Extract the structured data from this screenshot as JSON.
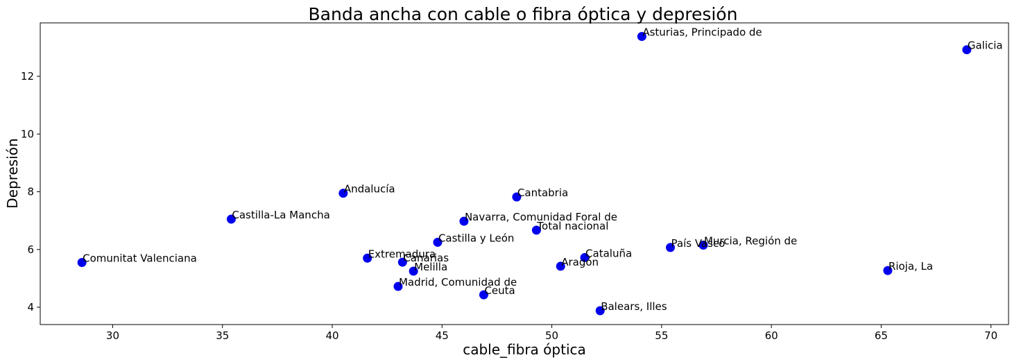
{
  "chart_data": {
    "type": "scatter",
    "title": "Banda ancha con cable o fibra óptica y depresión",
    "xlabel": "cable_fibra óptica",
    "ylabel": "Depresión",
    "xlim": [
      26.7,
      70.8
    ],
    "ylim": [
      3.4,
      13.85
    ],
    "xticks": [
      30,
      35,
      40,
      45,
      50,
      55,
      60,
      65,
      70
    ],
    "yticks": [
      4,
      6,
      8,
      10,
      12
    ],
    "grid": false,
    "marker_color": "#0000ee",
    "points": [
      {
        "label": "Comunitat Valenciana",
        "x": 28.6,
        "y": 5.55
      },
      {
        "label": "Castilla-La Mancha",
        "x": 35.4,
        "y": 7.05
      },
      {
        "label": "Andalucía",
        "x": 40.5,
        "y": 7.95
      },
      {
        "label": "Extremadura",
        "x": 41.6,
        "y": 5.7
      },
      {
        "label": "Madrid, Comunidad de",
        "x": 43.0,
        "y": 4.72
      },
      {
        "label": "Canarias",
        "x": 43.2,
        "y": 5.56
      },
      {
        "label": "Melilla",
        "x": 43.7,
        "y": 5.25
      },
      {
        "label": "Castilla y León",
        "x": 44.8,
        "y": 6.25
      },
      {
        "label": "Navarra, Comunidad Foral de",
        "x": 46.0,
        "y": 6.98
      },
      {
        "label": "Ceuta",
        "x": 46.9,
        "y": 4.43
      },
      {
        "label": "Cantabria",
        "x": 48.4,
        "y": 7.82
      },
      {
        "label": "Total nacional",
        "x": 49.3,
        "y": 6.67
      },
      {
        "label": "Aragón",
        "x": 50.4,
        "y": 5.42
      },
      {
        "label": "Cataluña",
        "x": 51.5,
        "y": 5.72
      },
      {
        "label": "Balears, Illes",
        "x": 52.2,
        "y": 3.88
      },
      {
        "label": "Asturias, Principado de",
        "x": 54.1,
        "y": 13.38
      },
      {
        "label": "País Vasco",
        "x": 55.4,
        "y": 6.07
      },
      {
        "label": "Murcia, Región de",
        "x": 56.9,
        "y": 6.15
      },
      {
        "label": "Rioja, La",
        "x": 65.3,
        "y": 5.27
      },
      {
        "label": "Galicia",
        "x": 68.9,
        "y": 12.92
      }
    ]
  }
}
